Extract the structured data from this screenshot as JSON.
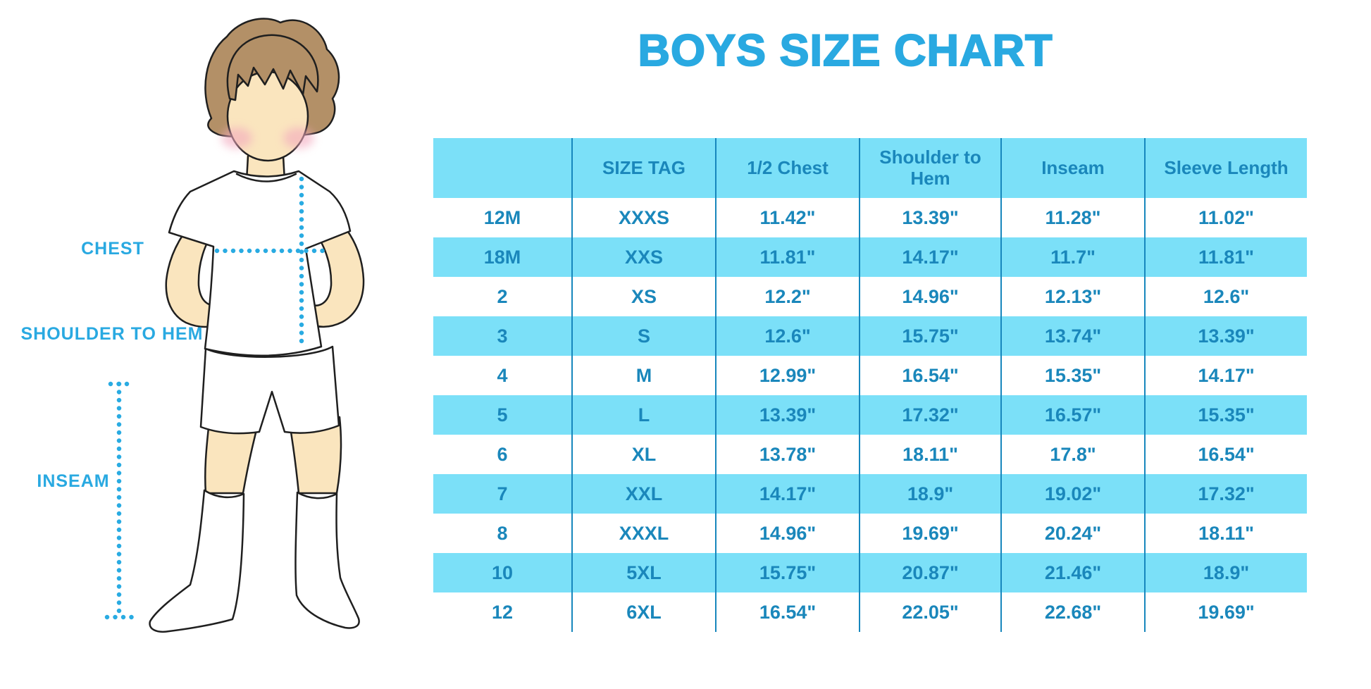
{
  "title": "BOYS SIZE CHART",
  "diagram": {
    "chest_label": "CHEST",
    "shoulder_to_hem_label": "SHOULDER TO HEM",
    "inseam_label": "INSEAM"
  },
  "chart_data": {
    "type": "table",
    "title": "BOYS SIZE CHART",
    "columns": [
      "",
      "SIZE TAG",
      "1/2 Chest",
      "Shoulder to Hem",
      "Inseam",
      "Sleeve Length"
    ],
    "rows": [
      [
        "12M",
        "XXXS",
        "11.42\"",
        "13.39\"",
        "11.28\"",
        "11.02\""
      ],
      [
        "18M",
        "XXS",
        "11.81\"",
        "14.17\"",
        "11.7\"",
        "11.81\""
      ],
      [
        "2",
        "XS",
        "12.2\"",
        "14.96\"",
        "12.13\"",
        "12.6\""
      ],
      [
        "3",
        "S",
        "12.6\"",
        "15.75\"",
        "13.74\"",
        "13.39\""
      ],
      [
        "4",
        "M",
        "12.99\"",
        "16.54\"",
        "15.35\"",
        "14.17\""
      ],
      [
        "5",
        "L",
        "13.39\"",
        "17.32\"",
        "16.57\"",
        "15.35\""
      ],
      [
        "6",
        "XL",
        "13.78\"",
        "18.11\"",
        "17.8\"",
        "16.54\""
      ],
      [
        "7",
        "XXL",
        "14.17\"",
        "18.9\"",
        "19.02\"",
        "17.32\""
      ],
      [
        "8",
        "XXXL",
        "14.96\"",
        "19.69\"",
        "20.24\"",
        "18.11\""
      ],
      [
        "10",
        "5XL",
        "15.75\"",
        "20.87\"",
        "21.46\"",
        "18.9\""
      ],
      [
        "12",
        "6XL",
        "16.54\"",
        "22.05\"",
        "22.68\"",
        "19.69\""
      ]
    ]
  },
  "colors": {
    "accent_blue": "#29A9E1",
    "table_text_blue": "#1A87BB",
    "row_fill_blue": "#7BE0F8",
    "grid_line_blue": "#1787BD",
    "dotted_line_blue": "#29ABE2",
    "skin": "#FAE5BE",
    "hair": "#B39067",
    "cheek_pink": "#F3A9BE"
  }
}
